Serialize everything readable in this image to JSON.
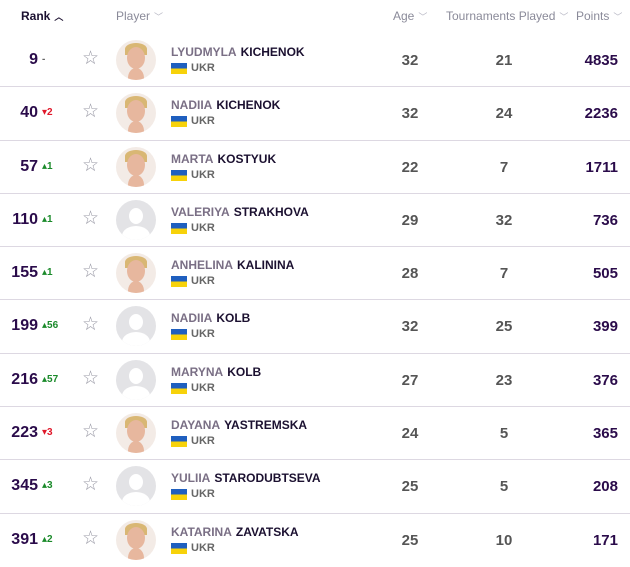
{
  "header": {
    "rank": "Rank",
    "player": "Player",
    "age": "Age",
    "tournaments": "Tournaments Played",
    "points": "Points"
  },
  "players": [
    {
      "rank": "9",
      "move": "-",
      "dir": "same",
      "first": "LYUDMYLA",
      "last": "KICHENOK",
      "country": "UKR",
      "age": "32",
      "tp": "21",
      "points": "4835",
      "photo": true
    },
    {
      "rank": "40",
      "move": "▾2",
      "dir": "down",
      "first": "NADIIA",
      "last": "KICHENOK",
      "country": "UKR",
      "age": "32",
      "tp": "24",
      "points": "2236",
      "photo": true
    },
    {
      "rank": "57",
      "move": "▴1",
      "dir": "up",
      "first": "MARTA",
      "last": "KOSTYUK",
      "country": "UKR",
      "age": "22",
      "tp": "7",
      "points": "1711",
      "photo": true
    },
    {
      "rank": "110",
      "move": "▴1",
      "dir": "up",
      "first": "VALERIYA",
      "last": "STRAKHOVA",
      "country": "UKR",
      "age": "29",
      "tp": "32",
      "points": "736",
      "photo": false
    },
    {
      "rank": "155",
      "move": "▴1",
      "dir": "up",
      "first": "ANHELINA",
      "last": "KALININA",
      "country": "UKR",
      "age": "28",
      "tp": "7",
      "points": "505",
      "photo": true
    },
    {
      "rank": "199",
      "move": "▴56",
      "dir": "up",
      "first": "NADIIA",
      "last": "KOLB",
      "country": "UKR",
      "age": "32",
      "tp": "25",
      "points": "399",
      "photo": false
    },
    {
      "rank": "216",
      "move": "▴57",
      "dir": "up",
      "first": "MARYNA",
      "last": "KOLB",
      "country": "UKR",
      "age": "27",
      "tp": "23",
      "points": "376",
      "photo": false
    },
    {
      "rank": "223",
      "move": "▾3",
      "dir": "down",
      "first": "DAYANA",
      "last": "YASTREMSKA",
      "country": "UKR",
      "age": "24",
      "tp": "5",
      "points": "365",
      "photo": true
    },
    {
      "rank": "345",
      "move": "▴3",
      "dir": "up",
      "first": "YULIIA",
      "last": "STARODUBTSEVA",
      "country": "UKR",
      "age": "25",
      "tp": "5",
      "points": "208",
      "photo": false
    },
    {
      "rank": "391",
      "move": "▴2",
      "dir": "up",
      "first": "KATARINA",
      "last": "ZAVATSKA",
      "country": "UKR",
      "age": "25",
      "tp": "10",
      "points": "171",
      "photo": true
    }
  ]
}
